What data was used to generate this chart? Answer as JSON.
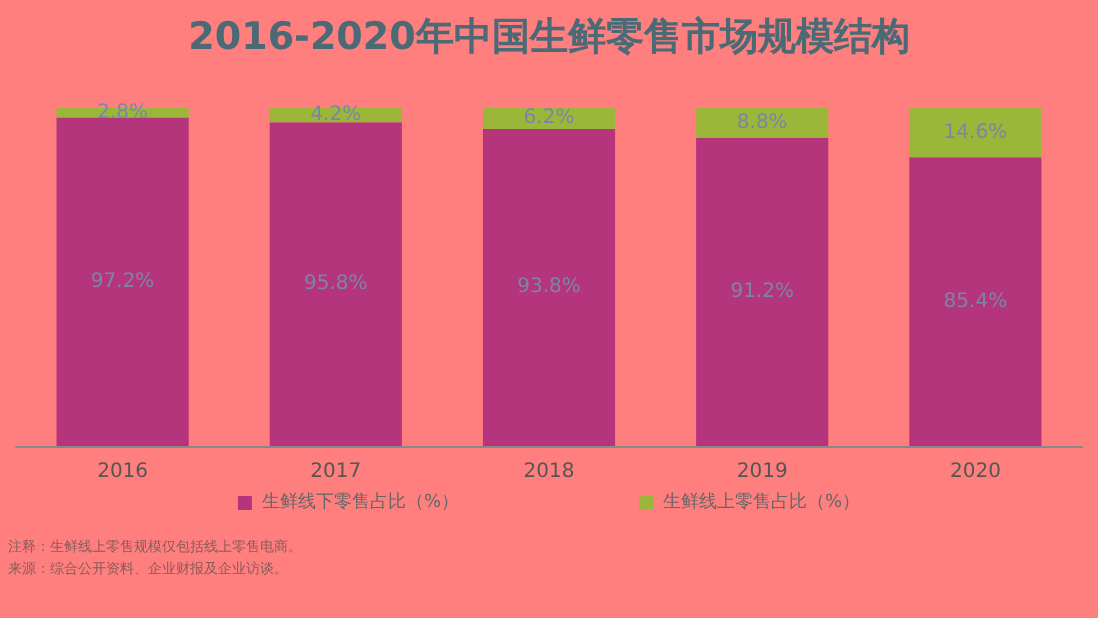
{
  "chart_data": {
    "type": "bar",
    "title": "2016-2020年中国生鲜零售市场规模结构",
    "categories": [
      "2016",
      "2017",
      "2018",
      "2019",
      "2020"
    ],
    "stacked": true,
    "legend": "bottom",
    "series": [
      {
        "name": "生鲜线下零售占比（%）",
        "color": "#b5357c",
        "values": [
          97.2,
          95.8,
          93.8,
          91.2,
          85.4
        ],
        "value_labels": [
          "97.2%",
          "95.8%",
          "93.8%",
          "91.2%",
          "85.4%"
        ]
      },
      {
        "name": "生鲜线上零售占比（%）",
        "color": "#9cb63a",
        "values": [
          2.8,
          4.2,
          6.2,
          8.8,
          14.6
        ],
        "value_labels": [
          "2.8%",
          "4.2%",
          "6.2%",
          "8.8%",
          "14.6%"
        ]
      }
    ],
    "annotations": [
      "注释：生鲜线上零售规模仅包括线上零售电商。",
      "来源：综合公开资料、企业财报及企业访谈。"
    ]
  }
}
